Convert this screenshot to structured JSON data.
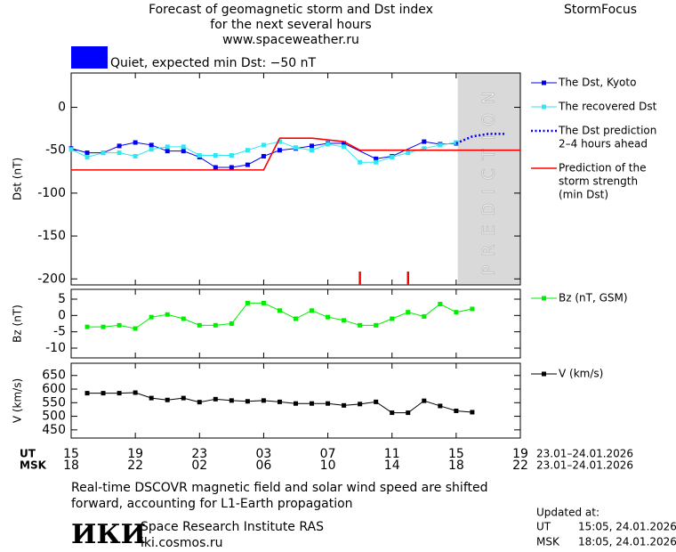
{
  "header": {
    "title_lines": [
      "Forecast of geomagnetic storm and Dst index",
      "for the next several hours",
      "www.spaceweather.ru"
    ],
    "brand": "StormFocus"
  },
  "status": {
    "color": "#0000ff",
    "text": "Quiet, expected min Dst: −50 nT"
  },
  "chart_data": [
    {
      "type": "line",
      "ylabel": "Dst (nT)",
      "xlim": [
        0,
        28
      ],
      "ylim": [
        -207,
        40
      ],
      "yticks": [
        0,
        -50,
        -100,
        -150,
        -200
      ],
      "prediction_band": {
        "xlim": [
          24.1,
          28
        ],
        "label": "PREDICTION",
        "color": "#d9d9d9"
      },
      "marker_lines": {
        "x": [
          18,
          21
        ],
        "color": "#ff0000"
      },
      "series": [
        {
          "name": [
            "The Dst, Kyoto"
          ],
          "color": "#0000ee",
          "marker": "square",
          "style": "solid",
          "x": [
            0,
            1,
            2,
            3,
            4,
            5,
            6,
            7,
            8,
            9,
            10,
            11,
            12,
            13,
            14,
            15,
            16,
            17,
            19,
            20,
            22,
            23,
            24
          ],
          "values": [
            -48,
            -53,
            -53,
            -45,
            -41,
            -44,
            -51,
            -51,
            -58,
            -70,
            -70,
            -67,
            -57,
            -50,
            -48,
            -45,
            -42,
            -42,
            -60,
            -57,
            -40,
            -43,
            -42
          ]
        },
        {
          "name": [
            "The recovered Dst"
          ],
          "color": "#33e5f0",
          "marker": "square",
          "style": "solid",
          "x": [
            0,
            1,
            2,
            3,
            4,
            5,
            6,
            7,
            8,
            9,
            10,
            11,
            12,
            13,
            14,
            15,
            16,
            17,
            18,
            19,
            20,
            21,
            22,
            23,
            24
          ],
          "values": [
            -49,
            -58,
            -53,
            -53,
            -57,
            -49,
            -46,
            -46,
            -56,
            -56,
            -56,
            -50,
            -44,
            -40,
            -47,
            -50,
            -43,
            -46,
            -64,
            -64,
            -58,
            -53,
            -48,
            -44,
            -41
          ]
        },
        {
          "name": [
            "The Dst prediction",
            "2–4 hours ahead"
          ],
          "color": "#0000ee",
          "marker": "none",
          "style": "dotted",
          "x": [
            24,
            25,
            26,
            27
          ],
          "values": [
            -42,
            -34,
            -31,
            -31
          ]
        },
        {
          "name": [
            "Prediction of the",
            "storm strength",
            "(min Dst)"
          ],
          "color": "#ff0000",
          "marker": "none",
          "style": "solid",
          "x": [
            0,
            12,
            13,
            15,
            17,
            18,
            28
          ],
          "values": [
            -73,
            -73,
            -36,
            -36,
            -40,
            -50,
            -50
          ]
        }
      ]
    },
    {
      "type": "line",
      "ylabel": "Bz (nT)",
      "xlim": [
        0,
        28
      ],
      "ylim": [
        -13,
        8
      ],
      "yticks": [
        5,
        0,
        -5,
        -10
      ],
      "series": [
        {
          "name": [
            "Bz (nT, GSM)"
          ],
          "color": "#00ee00",
          "marker": "square",
          "style": "solid",
          "x": [
            1,
            2,
            3,
            4,
            5,
            6,
            7,
            8,
            9,
            10,
            11,
            12,
            13,
            14,
            15,
            16,
            17,
            18,
            19,
            20,
            21,
            22,
            23,
            24,
            25
          ],
          "values": [
            -3.5,
            -3.5,
            -3,
            -4,
            -0.5,
            0.3,
            -1,
            -3,
            -3,
            -2.5,
            3.8,
            3.8,
            1.5,
            -1,
            1.5,
            -0.5,
            -1.5,
            -3,
            -3,
            -1,
            1,
            -0.3,
            3.5,
            1,
            2
          ]
        }
      ]
    },
    {
      "type": "line",
      "ylabel": "V (km/s)",
      "xlim": [
        0,
        28
      ],
      "ylim": [
        420,
        695
      ],
      "yticks": [
        650,
        600,
        550,
        500,
        450
      ],
      "xlabel": "UT",
      "xlabel_msk": "MSK",
      "xrange": "23.01–24.01.2026",
      "xrange_msk": "23.01–24.01.2026",
      "xticks": [
        {
          "value": 0,
          "label": "15"
        },
        {
          "value": 4,
          "label": "19"
        },
        {
          "value": 8,
          "label": "23"
        },
        {
          "value": 12,
          "label": "03"
        },
        {
          "value": 16,
          "label": "07"
        },
        {
          "value": 20,
          "label": "11"
        },
        {
          "value": 24,
          "label": "15"
        },
        {
          "value": 28,
          "label": "19"
        }
      ],
      "xticks_msk": [
        {
          "value": 0,
          "label": "18"
        },
        {
          "value": 4,
          "label": "22"
        },
        {
          "value": 8,
          "label": "02"
        },
        {
          "value": 12,
          "label": "06"
        },
        {
          "value": 16,
          "label": "10"
        },
        {
          "value": 20,
          "label": "14"
        },
        {
          "value": 24,
          "label": "18"
        },
        {
          "value": 28,
          "label": "22"
        }
      ],
      "series": [
        {
          "name": [
            "V (km/s)"
          ],
          "color": "#000000",
          "marker": "square",
          "style": "solid",
          "x": [
            1,
            2,
            3,
            4,
            5,
            6,
            7,
            8,
            9,
            10,
            11,
            12,
            13,
            14,
            15,
            16,
            17,
            18,
            19,
            20,
            21,
            22,
            23,
            24,
            25
          ],
          "values": [
            585,
            585,
            585,
            587,
            567,
            560,
            567,
            552,
            563,
            558,
            555,
            558,
            553,
            547,
            547,
            547,
            540,
            545,
            553,
            513,
            513,
            557,
            538,
            520,
            515
          ]
        }
      ]
    }
  ],
  "footer": {
    "note_lines": [
      "Real-time DSCOVR magnetic field and solar wind speed are shifted",
      "forward, accounting for L1-Earth propagation"
    ],
    "logo": "ИКИ",
    "institute": "Space Research Institute RAS",
    "site": "iki.cosmos.ru",
    "updated_title": "Updated at:",
    "updated": [
      [
        "UT",
        "15:05, 24.01.2026"
      ],
      [
        "MSK",
        "18:05, 24.01.2026"
      ]
    ]
  }
}
